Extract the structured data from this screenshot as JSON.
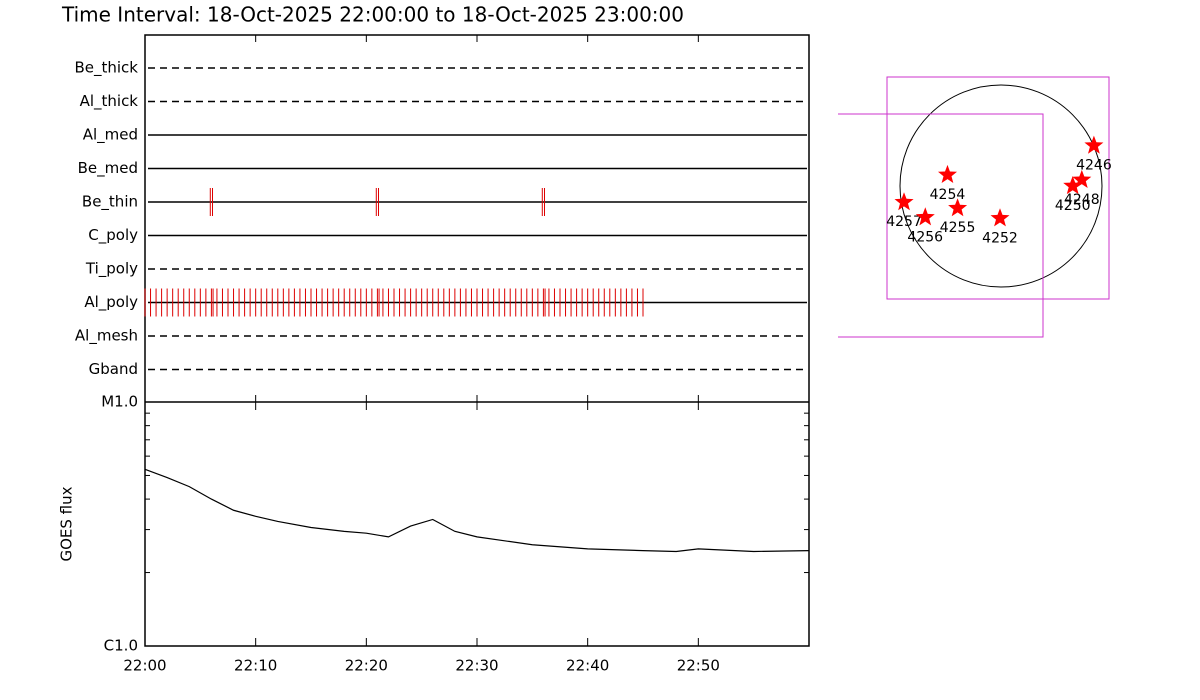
{
  "title": "Time Interval: 18-Oct-2025 22:00:00 to 18-Oct-2025 23:00:00",
  "chart_data": [
    {
      "type": "timeline",
      "filters": [
        "Be_thick",
        "Al_thick",
        "Al_med",
        "Be_med",
        "Be_thin",
        "C_poly",
        "Ti_poly",
        "Al_poly",
        "Al_mesh",
        "Gband"
      ],
      "line_styles": [
        "dashed",
        "dashed",
        "solid",
        "solid",
        "solid",
        "solid",
        "dashed",
        "solid",
        "dashed",
        "dashed"
      ],
      "observation_color": "#dd0000",
      "xlim": [
        0,
        60
      ],
      "xticks": [
        0,
        10,
        20,
        30,
        40,
        50
      ],
      "series": [
        {
          "filter": "Be_thin",
          "x": [
            5.9,
            6.1,
            20.9,
            21.1,
            35.9,
            36.1
          ]
        },
        {
          "filter": "Al_poly",
          "x": [
            0,
            0.5,
            1,
            1.5,
            2,
            2.5,
            3,
            3.5,
            4,
            4.5,
            5,
            5.5,
            6,
            6.15,
            6.5,
            7,
            7.5,
            8,
            8.5,
            9,
            9.5,
            10,
            10.5,
            11,
            11.5,
            12,
            12.5,
            13,
            13.5,
            14,
            14.5,
            15,
            15.5,
            16,
            16.5,
            17,
            17.5,
            18,
            18.5,
            19,
            19.5,
            20,
            20.5,
            21,
            21.15,
            21.5,
            22,
            22.5,
            23,
            23.5,
            24,
            24.5,
            25,
            25.5,
            26,
            26.5,
            27,
            27.5,
            28,
            28.5,
            29,
            29.5,
            30,
            30.5,
            31,
            31.5,
            32,
            32.5,
            33,
            33.5,
            34,
            34.5,
            35,
            35.5,
            36,
            36.15,
            36.5,
            37,
            37.5,
            38,
            38.5,
            39,
            39.5,
            40,
            40.5,
            41,
            41.5,
            42,
            42.5,
            43,
            43.5,
            44,
            44.5,
            45
          ]
        }
      ]
    },
    {
      "type": "line",
      "ylabel": "GOES flux",
      "log_scale": true,
      "color": "#000000",
      "x": [
        0,
        2,
        4,
        6,
        8,
        10,
        12,
        15,
        18,
        20,
        22,
        24,
        26,
        28,
        30,
        35,
        40,
        45,
        48,
        50,
        55,
        60
      ],
      "values": [
        5.3e-06,
        4.9e-06,
        4.5e-06,
        4e-06,
        3.6e-06,
        3.4e-06,
        3.24e-06,
        3.06e-06,
        2.95e-06,
        2.9e-06,
        2.8e-06,
        3.1e-06,
        3.3e-06,
        2.95e-06,
        2.8e-06,
        2.6e-06,
        2.5e-06,
        2.46e-06,
        2.44e-06,
        2.5e-06,
        2.44e-06,
        2.46e-06
      ],
      "xlim": [
        0,
        60
      ],
      "xticks": [
        {
          "value": 0,
          "label": "22:00"
        },
        {
          "value": 10,
          "label": "22:10"
        },
        {
          "value": 20,
          "label": "22:20"
        },
        {
          "value": 30,
          "label": "22:30"
        },
        {
          "value": 40,
          "label": "22:40"
        },
        {
          "value": 50,
          "label": "22:50"
        }
      ],
      "ylim": [
        1e-06,
        1e-05
      ],
      "yticks": [
        {
          "value": 1e-06,
          "label": "C1.0"
        },
        {
          "value": 1e-05,
          "label": "M1.0"
        }
      ],
      "yminor": [
        2e-06,
        3e-06,
        4e-06,
        5e-06,
        6e-06,
        7e-06,
        8e-06,
        9e-06
      ]
    },
    {
      "type": "disk",
      "star_color": "#ff0000",
      "regions": [
        {
          "label": "4246",
          "x": 0.92,
          "y": -0.4
        },
        {
          "label": "4248",
          "x": 0.8,
          "y": -0.06
        },
        {
          "label": "4250",
          "x": 0.71,
          "y": 0.0
        },
        {
          "label": "4254",
          "x": -0.53,
          "y": -0.11
        },
        {
          "label": "4255",
          "x": -0.43,
          "y": 0.22
        },
        {
          "label": "4252",
          "x": -0.01,
          "y": 0.32
        },
        {
          "label": "4257",
          "x": -0.96,
          "y": 0.16
        },
        {
          "label": "4256",
          "x": -0.75,
          "y": 0.31
        }
      ]
    }
  ]
}
